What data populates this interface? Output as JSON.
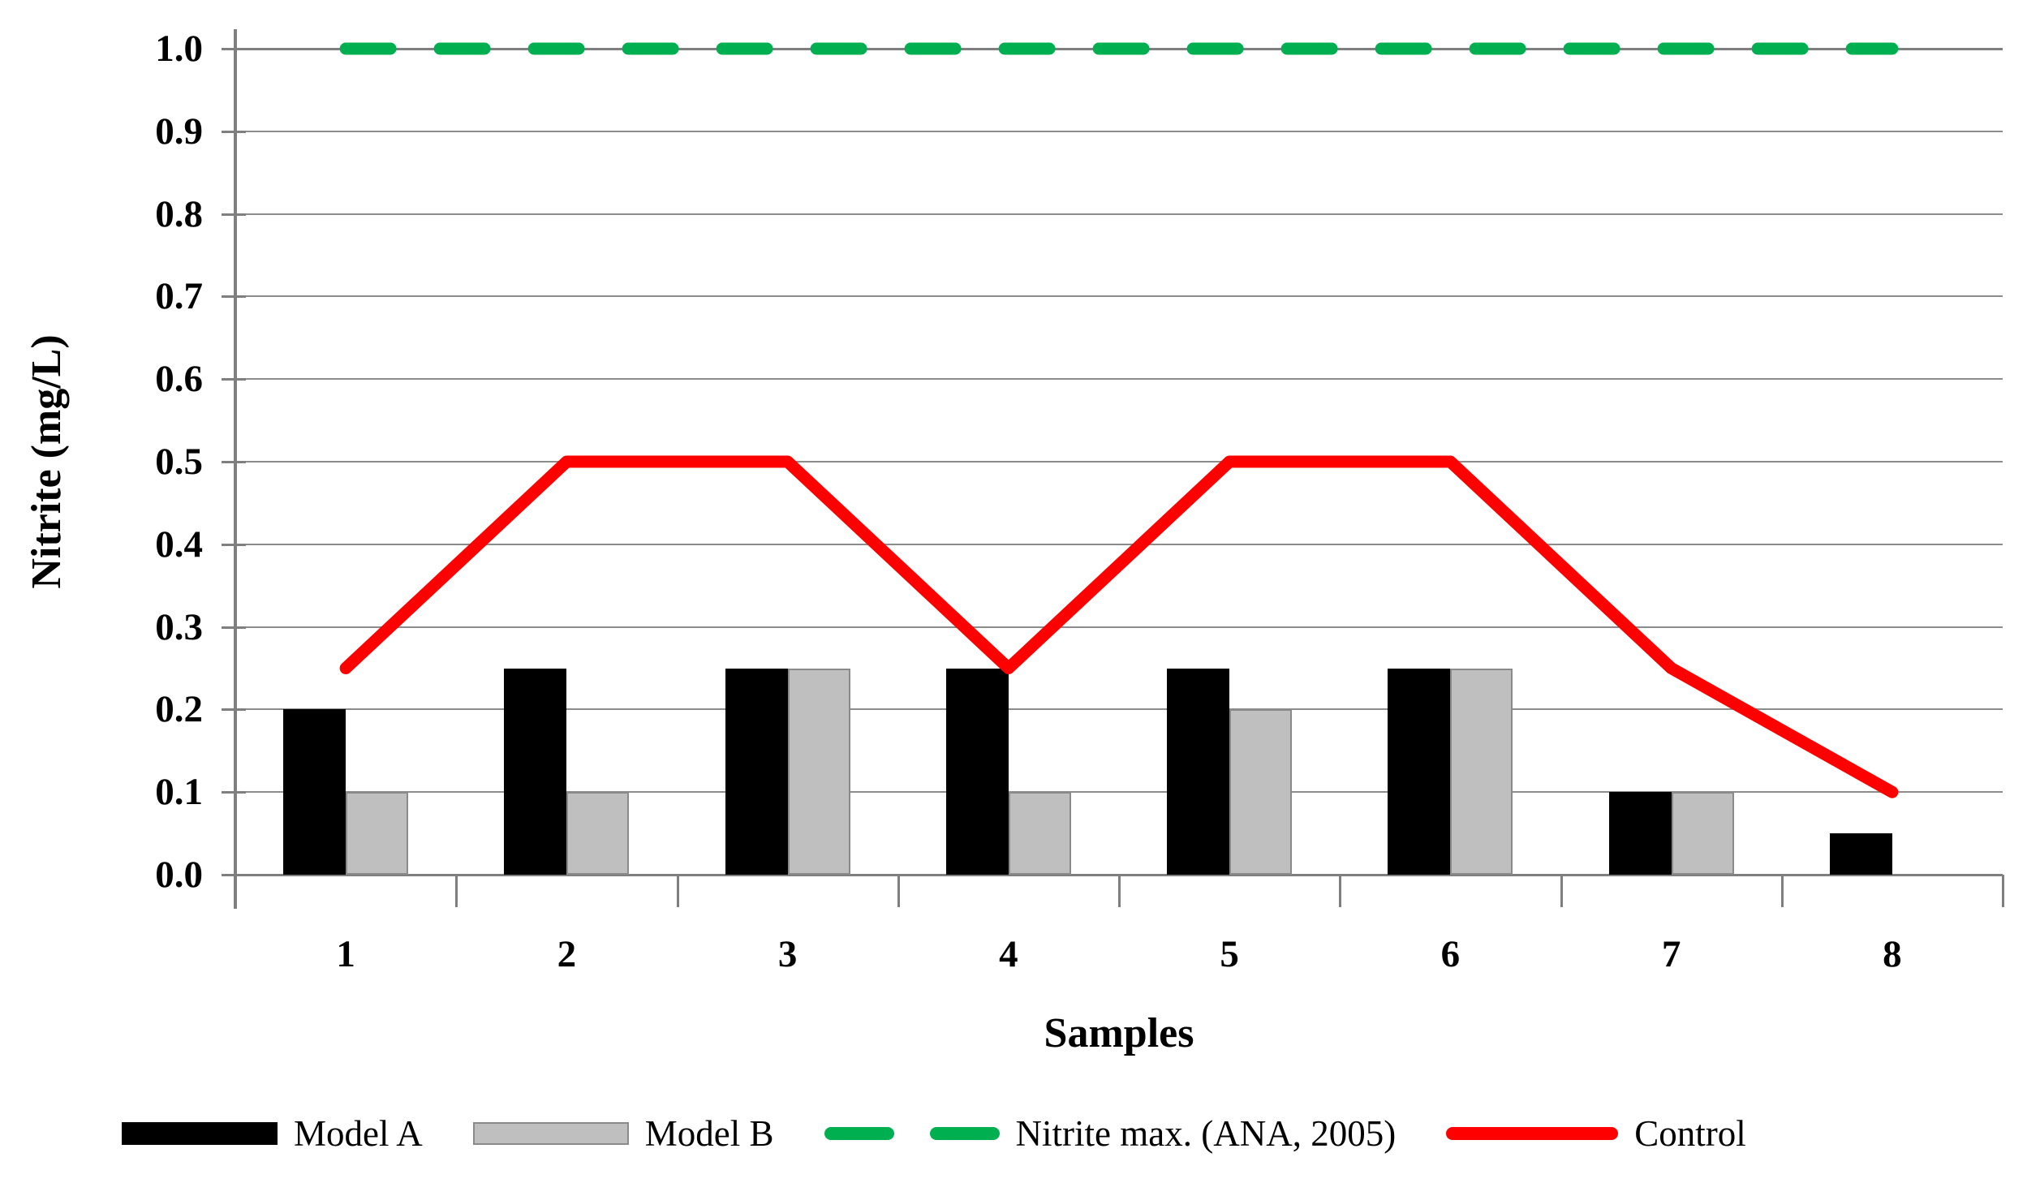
{
  "chart_data": {
    "type": "bar",
    "title": "",
    "categories": [
      "1",
      "2",
      "3",
      "4",
      "5",
      "6",
      "7",
      "8"
    ],
    "series": [
      {
        "name": "Model A",
        "type": "bar",
        "color": "#000000",
        "values": [
          0.2,
          0.25,
          0.25,
          0.25,
          0.25,
          0.25,
          0.1,
          0.05
        ]
      },
      {
        "name": "Model B",
        "type": "bar",
        "color": "#BFBFBF",
        "border": "#8A8A8A",
        "values": [
          0.1,
          0.1,
          0.25,
          0.1,
          0.2,
          0.25,
          0.1,
          0
        ]
      },
      {
        "name": "Nitrite max. (ANA, 2005)",
        "type": "dashed-line",
        "color": "#00B050",
        "values": [
          1.0,
          1.0,
          1.0,
          1.0,
          1.0,
          1.0,
          1.0,
          1.0
        ]
      },
      {
        "name": "Control",
        "type": "line",
        "color": "#FF0000",
        "values": [
          0.25,
          0.5,
          0.5,
          0.25,
          0.5,
          0.5,
          0.25,
          0.1
        ]
      }
    ],
    "xlabel": "Samples",
    "ylabel": "Nitrite (mg/L)",
    "ylim": [
      0,
      1
    ],
    "yticks": [
      "1.0",
      "0.9",
      "0.8",
      "0.7",
      "0.6",
      "0.5",
      "0.4",
      "0.3",
      "0.2",
      "0.1",
      "0.0"
    ],
    "grid": "horizontal",
    "grid_color": "#8C8C8C",
    "axis_color": "#7F7F7F",
    "legend_position": "bottom"
  }
}
